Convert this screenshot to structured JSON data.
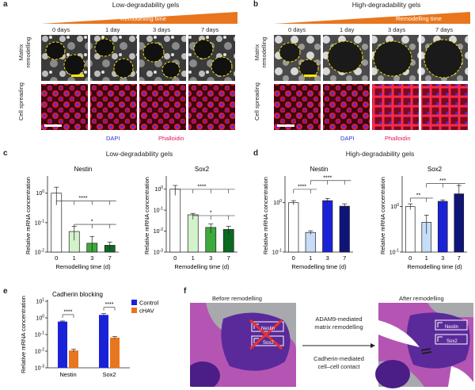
{
  "panels": {
    "a": {
      "letter": "a",
      "title": "Low-degradability gels",
      "banner": "Remodelling time",
      "days": [
        "0 days",
        "1 day",
        "3 days",
        "7 days"
      ],
      "row_labels": [
        "Matrix remodelling",
        "Cell spreading"
      ],
      "stains": [
        "DAPI",
        "Phalloidin"
      ]
    },
    "b": {
      "letter": "b",
      "title": "High-degradability gels",
      "banner": "Remodelling time",
      "days": [
        "0 days",
        "1 day",
        "3 days",
        "7 days"
      ],
      "row_labels": [
        "Matrix remodelling",
        "Cell spreading"
      ],
      "stains": [
        "DAPI",
        "Phalloidin"
      ]
    },
    "c": {
      "letter": "c",
      "title": "Low-degradability gels"
    },
    "d": {
      "letter": "d",
      "title": "High-degradability gels"
    },
    "e": {
      "letter": "e"
    },
    "f": {
      "letter": "f",
      "before": "Before remodelling",
      "after": "After remodelling",
      "arrow1": [
        "ADAM9-mediated",
        "matrix remodelling"
      ],
      "arrow2": [
        "Cadherin-mediated",
        "cell–cell contact"
      ],
      "genes": [
        "Nestin",
        "Sox2"
      ]
    }
  },
  "colors": {
    "orange": "#E8761E",
    "blue": "#1A22D8",
    "navy": "#0E157A",
    "light_green": "#D3F2CC",
    "green": "#3DAA3B",
    "dark_green": "#0B6A22",
    "light_blue": "#C5DDF7",
    "magenta": "#B455B4",
    "purple": "#4A1E86"
  },
  "chart_data": [
    {
      "panel": "c",
      "type": "bar",
      "title": "Nestin",
      "ylabel": "Relative mRNA concentration",
      "xlabel": "Remodelling time (d)",
      "yscale": "log",
      "ylim": [
        0.01,
        3
      ],
      "categories": [
        "0",
        "1",
        "3",
        "7"
      ],
      "values": [
        1.0,
        0.05,
        0.02,
        0.017
      ],
      "errors": [
        0.6,
        0.025,
        0.014,
        0.005
      ],
      "significance": [
        "****",
        "*"
      ],
      "yticks": [
        "10^0",
        "10^-1",
        "10^-2"
      ],
      "colors": [
        "#FFFFFF",
        "#D3F2CC",
        "#3DAA3B",
        "#0B6A22"
      ]
    },
    {
      "panel": "c",
      "type": "bar",
      "title": "Sox2",
      "ylabel": "Relative mRNA concentration",
      "xlabel": "Remodelling time (d)",
      "yscale": "log",
      "ylim": [
        0.001,
        3
      ],
      "categories": [
        "0",
        "1",
        "3",
        "7"
      ],
      "values": [
        1.0,
        0.06,
        0.015,
        0.012
      ],
      "errors": [
        0.5,
        0.01,
        0.007,
        0.005
      ],
      "significance": [
        "****",
        "*"
      ],
      "yticks": [
        "10^0",
        "10^-1",
        "10^-2",
        "10^-3"
      ],
      "colors": [
        "#FFFFFF",
        "#D3F2CC",
        "#3DAA3B",
        "#0B6A22"
      ]
    },
    {
      "panel": "d",
      "type": "bar",
      "title": "Nestin",
      "ylabel": "Relative mRNA concentration",
      "xlabel": "Remodelling time (d)",
      "yscale": "log",
      "ylim": [
        0.1,
        3
      ],
      "categories": [
        "0",
        "1",
        "3",
        "7"
      ],
      "values": [
        1.0,
        0.25,
        1.1,
        0.85
      ],
      "errors": [
        0.1,
        0.02,
        0.12,
        0.1
      ],
      "significance": [
        "****",
        "****"
      ],
      "yticks": [
        "10^0",
        "10^-1"
      ],
      "colors": [
        "#FFFFFF",
        "#C5DDF7",
        "#1A22D8",
        "#0E157A"
      ]
    },
    {
      "panel": "d",
      "type": "bar",
      "title": "Sox2",
      "ylabel": "Relative mRNA concentration",
      "xlabel": "Remodelling time (d)",
      "yscale": "log",
      "ylim": [
        0.1,
        4
      ],
      "categories": [
        "0",
        "1",
        "3",
        "7"
      ],
      "values": [
        1.0,
        0.45,
        1.3,
        1.9
      ],
      "errors": [
        0.15,
        0.2,
        0.1,
        1.0
      ],
      "significance": [
        "**",
        "***"
      ],
      "yticks": [
        "10^0",
        "10^-1"
      ],
      "colors": [
        "#FFFFFF",
        "#C5DDF7",
        "#1A22D8",
        "#0E157A"
      ]
    },
    {
      "panel": "e",
      "type": "bar",
      "title": "Cadherin blocking",
      "ylabel": "Relative mRNA concentration",
      "yscale": "log",
      "ylim": [
        0.001,
        10
      ],
      "categories": [
        "Nestin",
        "Sox2"
      ],
      "series": [
        {
          "name": "Control",
          "values": [
            0.6,
            1.5
          ],
          "errors": [
            0.05,
            0.3
          ],
          "color": "#1A22D8"
        },
        {
          "name": "cHAV",
          "values": [
            0.011,
            0.065
          ],
          "errors": [
            0.002,
            0.01
          ],
          "color": "#E8761E"
        }
      ],
      "significance": [
        "****",
        "****"
      ],
      "yticks": [
        "10^1",
        "10^0",
        "10^-1",
        "10^-2",
        "10^-3"
      ],
      "legend": "top-right"
    }
  ]
}
